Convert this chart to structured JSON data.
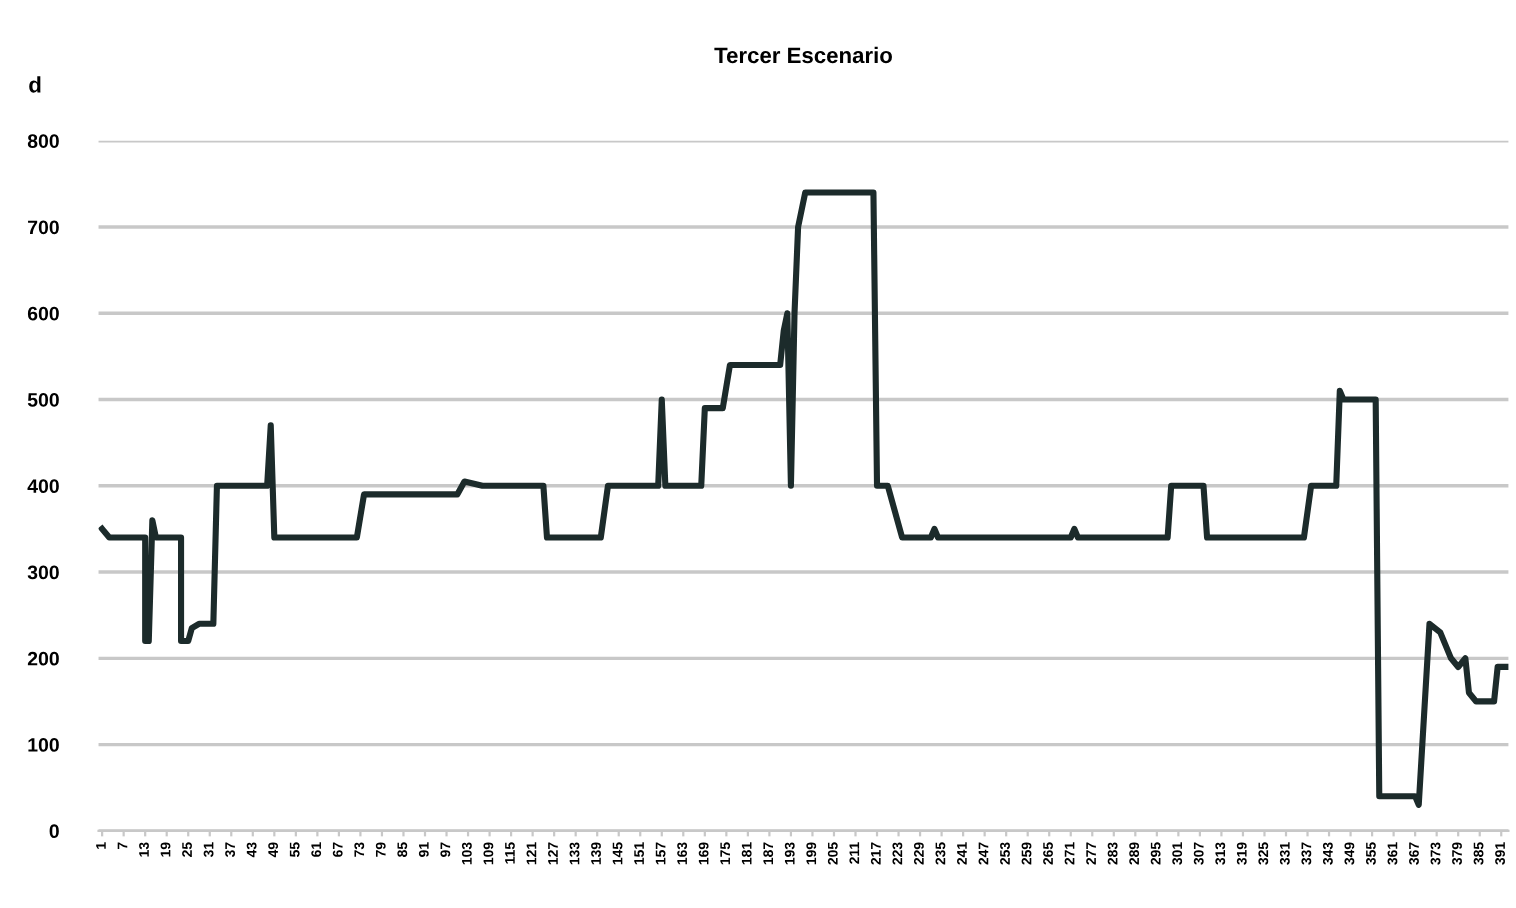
{
  "chart_data": {
    "type": "line",
    "title": "Tercer Escenario",
    "ylabel": "d",
    "x": [
      1,
      3,
      10,
      13,
      13,
      14,
      15,
      16,
      21,
      23,
      23,
      25,
      26,
      28,
      32,
      33,
      47,
      48,
      49,
      72,
      74,
      100,
      102,
      107,
      124,
      125,
      140,
      142,
      156,
      157,
      158,
      168,
      169,
      174,
      176,
      190,
      191,
      192,
      193,
      194,
      195,
      197,
      216,
      217,
      220,
      224,
      232,
      233,
      234,
      271,
      272,
      273,
      298,
      299,
      308,
      309,
      336,
      338,
      345,
      346,
      347,
      356,
      357,
      367,
      368,
      371,
      374,
      377,
      379,
      381,
      382,
      384,
      389,
      390,
      393
    ],
    "series": [
      {
        "color": "#1c2b2b",
        "values": [
          350,
          340,
          340,
          340,
          220,
          220,
          360,
          340,
          340,
          340,
          220,
          220,
          235,
          240,
          240,
          400,
          400,
          470,
          340,
          340,
          390,
          390,
          405,
          400,
          400,
          340,
          340,
          400,
          400,
          500,
          400,
          400,
          490,
          490,
          540,
          540,
          580,
          600,
          400,
          600,
          700,
          740,
          740,
          400,
          400,
          340,
          340,
          350,
          340,
          340,
          350,
          340,
          340,
          400,
          400,
          340,
          340,
          400,
          400,
          510,
          500,
          500,
          40,
          40,
          30,
          240,
          230,
          200,
          190,
          200,
          160,
          150,
          150,
          190,
          190
        ]
      }
    ],
    "xlim": [
      0,
      393
    ],
    "xticks": [
      1,
      7,
      13,
      19,
      25,
      31,
      37,
      43,
      49,
      55,
      61,
      67,
      73,
      79,
      85,
      91,
      97,
      103,
      109,
      115,
      121,
      127,
      133,
      139,
      145,
      151,
      157,
      163,
      169,
      175,
      181,
      187,
      193,
      199,
      205,
      211,
      217,
      223,
      229,
      235,
      241,
      247,
      253,
      259,
      265,
      271,
      277,
      283,
      289,
      295,
      301,
      307,
      313,
      319,
      325,
      331,
      337,
      343,
      349,
      355,
      361,
      367,
      373,
      379,
      385,
      391
    ],
    "ylim": [
      0,
      800
    ],
    "yticks": [
      0,
      100,
      200,
      300,
      400,
      500,
      600,
      700,
      800
    ],
    "grid": "y",
    "line_style": "solid",
    "marker": "none"
  }
}
